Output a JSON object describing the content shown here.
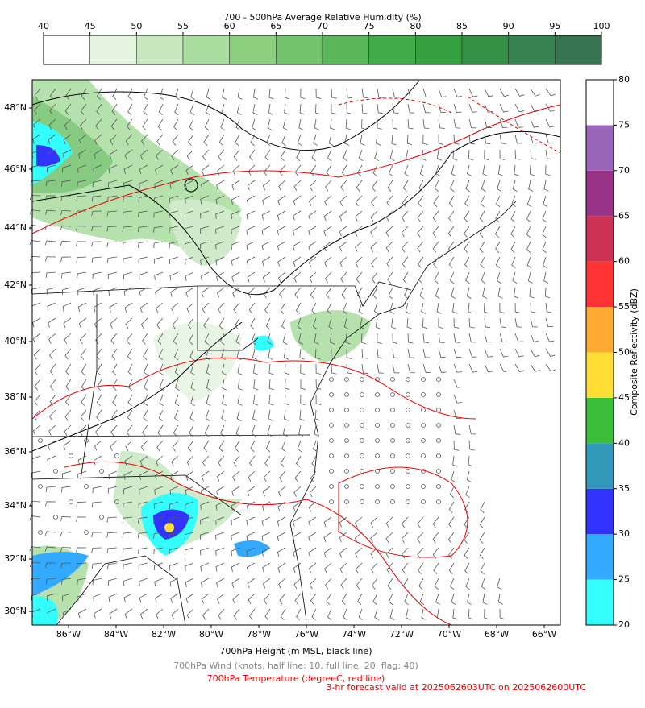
{
  "rh_colorbar": {
    "title": "700 - 500hPa Average Relative Humidity (%)",
    "ticks": [
      40,
      45,
      50,
      55,
      60,
      65,
      70,
      75,
      80,
      85,
      90,
      95,
      100
    ],
    "colors": [
      "#ffffff",
      "#e5f4e0",
      "#c8e8c0",
      "#a9dc9f",
      "#8ccf7f",
      "#72c36c",
      "#5ab85a",
      "#3fac48",
      "#35a03f",
      "#349044",
      "#368250",
      "#377552"
    ]
  },
  "reflectivity_colorbar": {
    "title": "Composite Reflectivity (dBZ)",
    "ticks": [
      20,
      25,
      30,
      35,
      40,
      45,
      50,
      55,
      60,
      65,
      70,
      75,
      80
    ],
    "colors": [
      "#33ffff",
      "#33aaff",
      "#3333ff",
      "#3399bb",
      "#3bbf3b",
      "#ffdd33",
      "#ffaa33",
      "#ff3333",
      "#cc3355",
      "#993388",
      "#9966bb",
      "#ffffff"
    ]
  },
  "map": {
    "lat_ticks": [
      {
        "value": 48,
        "label": "48°N"
      },
      {
        "value": 46,
        "label": "46°N"
      },
      {
        "value": 44,
        "label": "44°N"
      },
      {
        "value": 42,
        "label": "42°N"
      },
      {
        "value": 40,
        "label": "40°N"
      },
      {
        "value": 38,
        "label": "38°N"
      },
      {
        "value": 36,
        "label": "36°N"
      },
      {
        "value": 34,
        "label": "34°N"
      },
      {
        "value": 32,
        "label": "32°N"
      },
      {
        "value": 30,
        "label": "30°N"
      }
    ],
    "lon_ticks": [
      {
        "value": -86,
        "label": "86°W"
      },
      {
        "value": -84,
        "label": "84°W"
      },
      {
        "value": -82,
        "label": "82°W"
      },
      {
        "value": -80,
        "label": "80°W"
      },
      {
        "value": -78,
        "label": "78°W"
      },
      {
        "value": -76,
        "label": "76°W"
      },
      {
        "value": -74,
        "label": "74°W"
      },
      {
        "value": -72,
        "label": "72°W"
      },
      {
        "value": -70,
        "label": "70°W"
      },
      {
        "value": -68,
        "label": "68°W"
      },
      {
        "value": -66,
        "label": "66°W"
      }
    ]
  },
  "captions": {
    "height": "700hPa Height (m MSL, black line)",
    "wind": "700hPa Wind (knots, half line: 10, full line: 20, flag: 40)",
    "temperature": "700hPa Temperature (degreeC, red line)",
    "forecast": "3-hr forecast valid at 2025062603UTC on 2025062600UTC"
  }
}
